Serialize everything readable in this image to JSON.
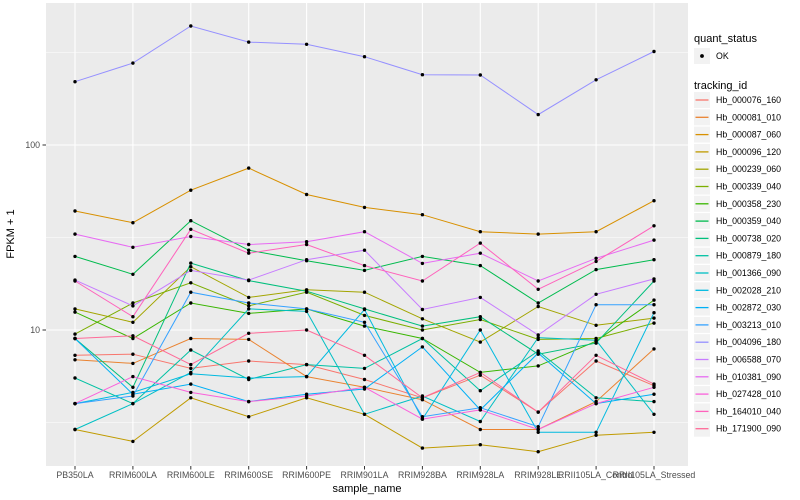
{
  "figure": {
    "kind": "ggplot-line-chart",
    "background": "#FFFFFF"
  },
  "colors": {
    "panel_bg": "#EBEBEB",
    "grid": "#FFFFFF",
    "point": "#000000",
    "axis_text": "#4D4D4D",
    "tick_mark": "#333333",
    "legend_key_bg": "#F2F2F2"
  },
  "legend": {
    "quant_status_title": "quant_status",
    "quant_status_items": [
      {
        "label": "OK",
        "symbol": "point"
      }
    ],
    "tracking_id_title": "tracking_id"
  },
  "chart_data": {
    "type": "line",
    "title": "",
    "xlabel": "sample_name",
    "ylabel": "FPKM + 1",
    "y_scale": "log10",
    "y_ticks": [
      10,
      100
    ],
    "y_tick_labels": [
      "10",
      "100"
    ],
    "y_minor_ticks": [
      3.1623,
      31.623,
      316.23
    ],
    "ylim_log": [
      2.0,
      480
    ],
    "grid": true,
    "legend_position": "right",
    "point_marker": "black-dot",
    "categories": [
      "PB350LA",
      "RRIM600LA",
      "RRIM600LE",
      "RRIM600SE",
      "RRIM600PE",
      "RRIM901LA",
      "RRIM928BA",
      "RRIM928LA",
      "RRIM928LE",
      "RRII105LA_Control",
      "RRII105LA_Stressed"
    ],
    "series": [
      {
        "name": "Hb_000076_160",
        "color": "#F8766D",
        "values": [
          7.3,
          7.4,
          6.2,
          6.8,
          6.5,
          5.4,
          4.3,
          5.7,
          3.6,
          6.8,
          5.0
        ]
      },
      {
        "name": "Hb_000081_010",
        "color": "#EA8331",
        "values": [
          6.9,
          6.6,
          9.0,
          8.9,
          5.6,
          4.9,
          4.2,
          2.9,
          2.9,
          4.1,
          7.9
        ]
      },
      {
        "name": "Hb_000087_060",
        "color": "#D89000",
        "values": [
          44,
          38,
          57,
          75,
          54,
          46,
          42,
          34,
          33,
          34,
          50
        ]
      },
      {
        "name": "Hb_000096_120",
        "color": "#C09B00",
        "values": [
          2.9,
          2.5,
          4.3,
          3.4,
          4.3,
          3.5,
          2.3,
          2.4,
          2.2,
          2.7,
          2.8
        ]
      },
      {
        "name": "Hb_000239_060",
        "color": "#A3A500",
        "values": [
          13.0,
          11.0,
          22.0,
          15.0,
          16.5,
          16.0,
          11.5,
          8.6,
          13.4,
          10.6,
          11.6
        ]
      },
      {
        "name": "Hb_000339_040",
        "color": "#7CAE00",
        "values": [
          9.5,
          14.0,
          18.0,
          13.5,
          16.0,
          12.0,
          10.0,
          11.4,
          8.9,
          9.0,
          10.9
        ]
      },
      {
        "name": "Hb_000358_230",
        "color": "#39B600",
        "values": [
          12.5,
          9.0,
          14.0,
          12.3,
          13.0,
          10.5,
          9.0,
          5.9,
          6.4,
          8.7,
          14.5
        ]
      },
      {
        "name": "Hb_000359_040",
        "color": "#00BB4E",
        "values": [
          25,
          20,
          39,
          27,
          23.7,
          21,
          25,
          22.3,
          14,
          21.2,
          24
        ]
      },
      {
        "name": "Hb_000738_020",
        "color": "#00BF7C",
        "values": [
          9.0,
          4.9,
          23.0,
          18.5,
          16.2,
          13.0,
          10.5,
          11.8,
          7.4,
          8.5,
          18.4
        ]
      },
      {
        "name": "Hb_000879_180",
        "color": "#00C1A3",
        "values": [
          5.5,
          4.0,
          7.8,
          5.4,
          6.5,
          6.2,
          9.0,
          4.7,
          7.7,
          4.3,
          4.1
        ]
      },
      {
        "name": "Hb_001366_090",
        "color": "#00BFC4",
        "values": [
          2.9,
          4.0,
          5.9,
          13.0,
          12.6,
          3.5,
          4.4,
          3.2,
          9.1,
          8.8,
          3.5
        ]
      },
      {
        "name": "Hb_002028_210",
        "color": "#00BAE0",
        "values": [
          4.0,
          4.6,
          5.8,
          5.5,
          5.6,
          12.9,
          3.3,
          10.0,
          2.8,
          2.8,
          12.4
        ]
      },
      {
        "name": "Hb_002872_030",
        "color": "#00B0F6",
        "values": [
          9.0,
          4.5,
          5.1,
          4.1,
          4.5,
          4.8,
          8.1,
          3.7,
          7.5,
          4.0,
          4.5
        ]
      },
      {
        "name": "Hb_003213_010",
        "color": "#35A2FF",
        "values": [
          4.0,
          4.4,
          16.0,
          14.0,
          13.0,
          11.0,
          3.4,
          3.8,
          3.0,
          13.7,
          13.7
        ]
      },
      {
        "name": "Hb_004096_180",
        "color": "#9590FF",
        "values": [
          220,
          277,
          440,
          360,
          350,
          300,
          240,
          239,
          146,
          225,
          320
        ]
      },
      {
        "name": "Hb_006588_070",
        "color": "#C77CFF",
        "values": [
          18.6,
          13.5,
          21.0,
          18.6,
          24.0,
          27.0,
          12.9,
          15.0,
          9.4,
          15.6,
          18.9
        ]
      },
      {
        "name": "Hb_010381_090",
        "color": "#E76BF3",
        "values": [
          33,
          28,
          32,
          29,
          30,
          34,
          22.9,
          26,
          18.4,
          24.4,
          30.6
        ]
      },
      {
        "name": "Hb_027428_010",
        "color": "#FA62DB",
        "values": [
          4.0,
          5.6,
          4.6,
          4.1,
          4.4,
          4.9,
          3.3,
          3.7,
          2.9,
          4.0,
          4.9
        ]
      },
      {
        "name": "Hb_164010_040",
        "color": "#FF62BC",
        "values": [
          18.4,
          11.8,
          35.0,
          26.0,
          29.0,
          22.3,
          18.4,
          29.5,
          16.6,
          23.5,
          36.6
        ]
      },
      {
        "name": "Hb_171900_090",
        "color": "#FF6A98",
        "values": [
          9.0,
          9.3,
          6.5,
          9.6,
          10.0,
          7.3,
          4.3,
          5.9,
          3.6,
          7.3,
          5.1
        ]
      }
    ]
  }
}
